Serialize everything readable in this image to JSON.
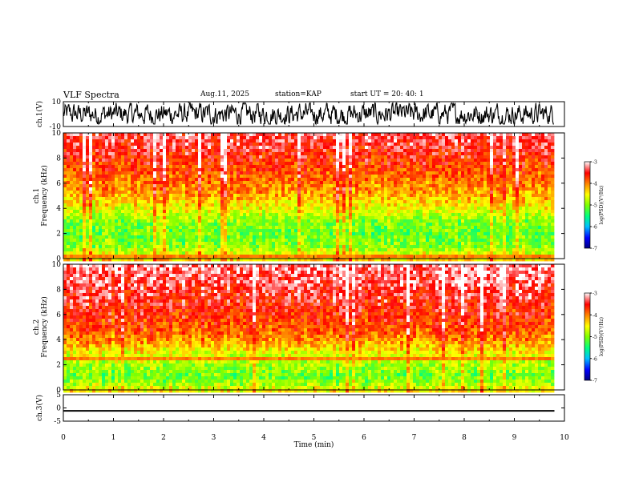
{
  "header": {
    "title": "VLF Spectra",
    "date": "Aug.11, 2025",
    "station": "station=KAP",
    "start": "start  UT  =   20: 40: 1"
  },
  "chart_data": [
    {
      "type": "line",
      "panel": "ch1-waveform",
      "ylabel": "ch.1(V)",
      "ylim": [
        -10,
        10
      ],
      "yticks": [
        "10",
        "-10"
      ],
      "xlim": [
        0,
        10
      ],
      "x_extent_min": 9.8,
      "trace": "dense noise waveform spanning roughly -8 to +9 V"
    },
    {
      "type": "heatmap",
      "panel": "ch1-spectrogram",
      "ylabel": "ch.1\nFrequency  (kHz)",
      "ylim": [
        0,
        10
      ],
      "yticks": [
        "0",
        "2",
        "4",
        "6",
        "8",
        "10"
      ],
      "xlim": [
        0,
        10
      ],
      "x_extent_min": 9.8,
      "colorbar": {
        "label": "log(PSD)(V²/Hz)",
        "range": [
          -7,
          -3
        ],
        "ticks": [
          "-3",
          "-4",
          "-5",
          "-6",
          "-7"
        ],
        "colors": [
          "#000080",
          "#0000ff",
          "#00c0ff",
          "#00ff80",
          "#80ff00",
          "#ffff00",
          "#ff8000",
          "#ff0000",
          "#ffffff"
        ]
      },
      "band_profile_khz": [
        {
          "f": 0.0,
          "level": -4.3
        },
        {
          "f": 0.6,
          "level": -4.6
        },
        {
          "f": 1.2,
          "level": -5.0
        },
        {
          "f": 2.0,
          "level": -5.1
        },
        {
          "f": 3.0,
          "level": -5.0
        },
        {
          "f": 4.0,
          "level": -4.6
        },
        {
          "f": 5.0,
          "level": -4.2
        },
        {
          "f": 6.5,
          "level": -3.9
        },
        {
          "f": 8.0,
          "level": -3.6
        },
        {
          "f": 10.0,
          "level": -3.3
        }
      ],
      "lines_khz": [
        0.4,
        0.7,
        1.2,
        2.0,
        2.3,
        3.2,
        3.8
      ]
    },
    {
      "type": "heatmap",
      "panel": "ch2-spectrogram",
      "ylabel": "ch.2\nFrequency  (kHz)",
      "ylim": [
        0,
        10
      ],
      "yticks": [
        "0",
        "2",
        "4",
        "6",
        "8",
        "10"
      ],
      "xlim": [
        0,
        10
      ],
      "x_extent_min": 9.8,
      "colorbar": {
        "label": "log(PSD)(V²/Hz)",
        "range": [
          -7,
          -3
        ],
        "ticks": [
          "-3",
          "-4",
          "-5",
          "-6",
          "-7"
        ],
        "colors": [
          "#000080",
          "#0000ff",
          "#00c0ff",
          "#00ff80",
          "#80ff00",
          "#ffff00",
          "#ff8000",
          "#ff0000",
          "#ffffff"
        ]
      },
      "band_profile_khz": [
        {
          "f": 0.0,
          "level": -4.4
        },
        {
          "f": 0.6,
          "level": -4.8
        },
        {
          "f": 1.2,
          "level": -5.1
        },
        {
          "f": 2.0,
          "level": -4.9
        },
        {
          "f": 3.0,
          "level": -4.6
        },
        {
          "f": 4.0,
          "level": -4.1
        },
        {
          "f": 5.0,
          "level": -3.8
        },
        {
          "f": 6.5,
          "level": -3.6
        },
        {
          "f": 8.0,
          "level": -3.4
        },
        {
          "f": 10.0,
          "level": -3.2
        }
      ],
      "lines_khz": [
        0.5,
        1.8,
        2.6,
        3.0
      ]
    },
    {
      "type": "line",
      "panel": "ch3-waveform",
      "ylabel": "ch.3(V)",
      "ylim": [
        -5,
        5
      ],
      "yticks": [
        "5",
        "0",
        "-5"
      ],
      "xlim": [
        0,
        10
      ],
      "x_extent_min": 9.8,
      "trace": "thick nearly constant band around -1 V (about -1.4 to -0.8 V)"
    }
  ],
  "xaxis": {
    "label": "Time  (min)",
    "ticks": [
      "0",
      "1",
      "2",
      "3",
      "4",
      "5",
      "6",
      "7",
      "8",
      "9",
      "10"
    ]
  }
}
